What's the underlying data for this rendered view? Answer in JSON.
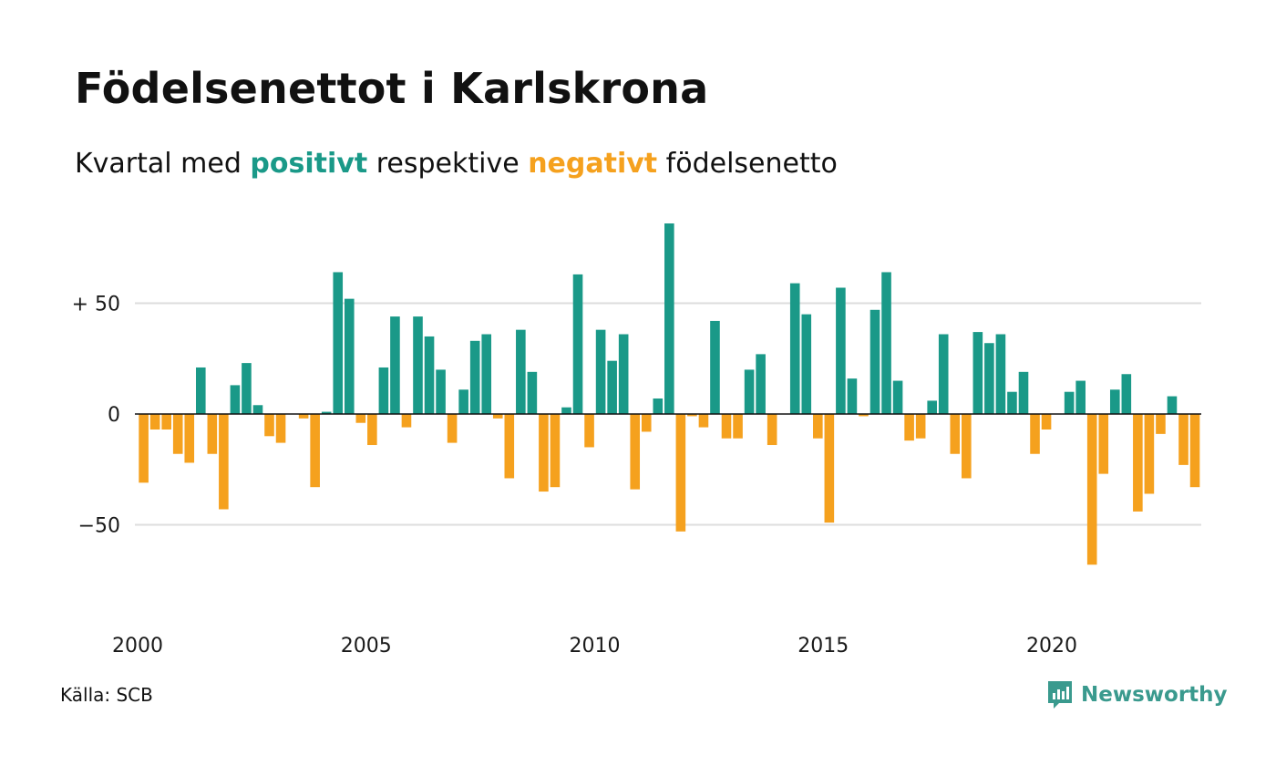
{
  "title": "Födelsenettot i Karlskrona",
  "subtitle": {
    "prefix": "Kvartal med ",
    "positive": "positivt",
    "middle": " respektive ",
    "negative": "negativt",
    "suffix": " födelsenetto"
  },
  "source": "Källa: SCB",
  "brand": "Newsworthy",
  "colors": {
    "positive": "#1a9988",
    "negative": "#f5a11e",
    "grid": "#dddddd",
    "brand": "#3a9a8e"
  },
  "chart_data": {
    "type": "bar",
    "x_start": 2000,
    "periods_per_year": 4,
    "ylim": [
      -70,
      90
    ],
    "yticks": [
      {
        "value": 50,
        "label": "+ 50"
      },
      {
        "value": 0,
        "label": "0"
      },
      {
        "value": -50,
        "label": "−50"
      }
    ],
    "xticks": [
      {
        "value": 2000,
        "label": "2000"
      },
      {
        "value": 2005,
        "label": "2005"
      },
      {
        "value": 2010,
        "label": "2010"
      },
      {
        "value": 2015,
        "label": "2015"
      },
      {
        "value": 2020,
        "label": "2020"
      }
    ],
    "grid": true,
    "values": [
      -31,
      -7,
      -7,
      -18,
      -22,
      21,
      -18,
      -43,
      13,
      23,
      4,
      -10,
      -13,
      0,
      -2,
      -33,
      1,
      64,
      52,
      -4,
      -14,
      21,
      44,
      -6,
      44,
      35,
      20,
      -13,
      11,
      33,
      36,
      -2,
      -29,
      38,
      19,
      -35,
      -33,
      3,
      63,
      -15,
      38,
      24,
      36,
      -34,
      -8,
      7,
      86,
      -53,
      -1,
      -6,
      42,
      -11,
      -11,
      20,
      27,
      -14,
      0,
      59,
      45,
      -11,
      -49,
      57,
      16,
      -1,
      47,
      64,
      15,
      -12,
      -11,
      6,
      36,
      -18,
      -29,
      37,
      32,
      36,
      10,
      19,
      -18,
      -7,
      0,
      10,
      15,
      -68,
      -27,
      11,
      18,
      -44,
      -36,
      -9,
      8,
      -23,
      -33
    ]
  }
}
